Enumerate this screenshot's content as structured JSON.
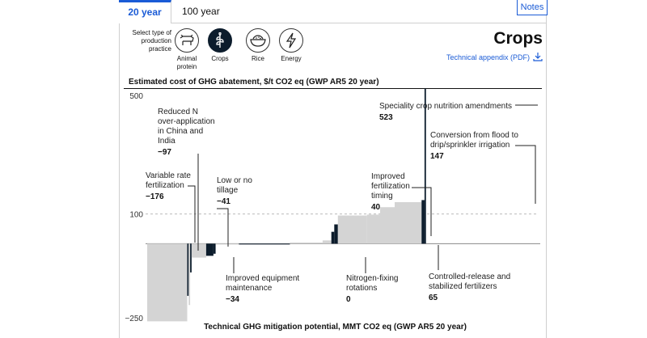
{
  "tabs": [
    {
      "label": "20 year",
      "active": true
    },
    {
      "label": "100 year",
      "active": false
    }
  ],
  "notes_label": "Notes",
  "selector": {
    "label": "Select type of production practice",
    "options": [
      {
        "label": "Animal protein",
        "icon": "cow-icon",
        "selected": false
      },
      {
        "label": "Crops",
        "icon": "crop-icon",
        "selected": true
      },
      {
        "label": "Rice",
        "icon": "rice-bowl-icon",
        "selected": false
      },
      {
        "label": "Energy",
        "icon": "lightning-icon",
        "selected": false
      }
    ]
  },
  "title": "Crops",
  "appendix_label": "Technical appendix (PDF)",
  "colors": {
    "accent": "#1a5bd6",
    "highlight": "#0c1c2c",
    "bar": "#d4d4d4"
  },
  "chart_data": {
    "type": "bar",
    "ylabel": "Estimated cost of GHG abatement, $/t CO2 eq (GWP AR5 20 year)",
    "xlabel": "Technical GHG mitigation potential, MMT CO2 eq (GWP AR5 20 year)",
    "ylim": [
      -250,
      500
    ],
    "yticks": [
      {
        "value": 500,
        "label": "500"
      },
      {
        "value": 100,
        "label": "100"
      },
      {
        "value": -250,
        "label": "−250"
      }
    ],
    "bars": [
      {
        "width": 55,
        "value": -262,
        "highlight": false
      },
      {
        "width": 2,
        "value": -176,
        "highlight": true
      },
      {
        "width": 2,
        "value": -207,
        "highlight": false
      },
      {
        "width": 2,
        "value": -97,
        "highlight": true
      },
      {
        "width": 20,
        "value": -47,
        "highlight": false
      },
      {
        "width": 10,
        "value": -41,
        "highlight": true
      },
      {
        "width": 3,
        "value": -34,
        "highlight": true
      },
      {
        "width": 12,
        "value": -2,
        "highlight": false
      },
      {
        "width": 20,
        "value": -2,
        "highlight": false
      },
      {
        "width": 70,
        "value": 0,
        "highlight": true
      },
      {
        "width": 45,
        "value": 4,
        "highlight": false
      },
      {
        "width": 12,
        "value": 11,
        "highlight": false
      },
      {
        "width": 4,
        "value": 40,
        "highlight": true
      },
      {
        "width": 5,
        "value": 65,
        "highlight": true
      },
      {
        "width": 40,
        "value": 95,
        "highlight": false
      },
      {
        "width": 18,
        "value": 98,
        "highlight": false
      },
      {
        "width": 20,
        "value": 123,
        "highlight": false
      },
      {
        "width": 37,
        "value": 140,
        "highlight": false
      },
      {
        "width": 4,
        "value": 147,
        "highlight": true
      },
      {
        "width": 2,
        "value": 523,
        "highlight": true
      }
    ],
    "annotations": [
      {
        "label": "Speciality crop nutrition amendments",
        "value": "523"
      },
      {
        "label": "Conversion from flood to drip/sprinkler irrigation",
        "value": "147"
      },
      {
        "label": "Reduced N over-application in China and India",
        "value": "−97"
      },
      {
        "label": "Variable rate fertilization",
        "value": "−176"
      },
      {
        "label": "Low or no tillage",
        "value": "−41"
      },
      {
        "label": "Improved fertilization timing",
        "value": "40"
      },
      {
        "label": "Improved equipment maintenance",
        "value": "−34"
      },
      {
        "label": "Nitrogen-fixing rotations",
        "value": "0"
      },
      {
        "label": "Controlled-release and stabilized fertilizers",
        "value": "65"
      }
    ]
  }
}
